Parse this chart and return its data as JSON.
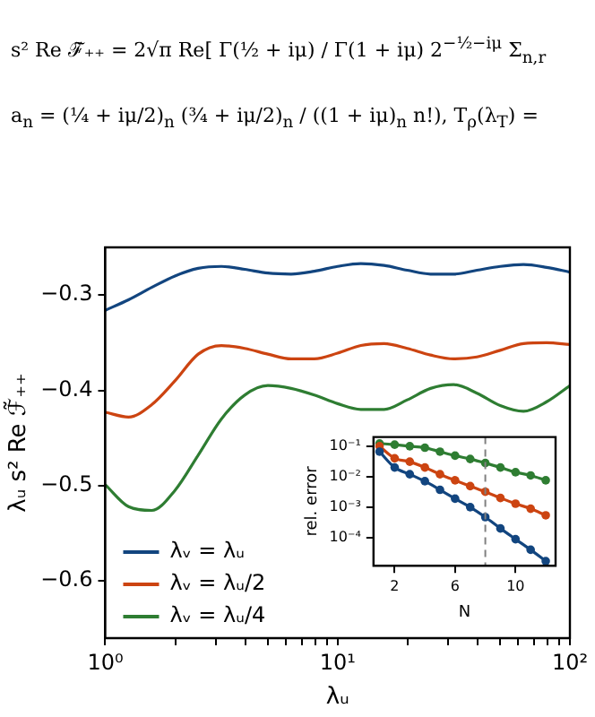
{
  "chart_data": [
    {
      "type": "line",
      "annotations": [
        "s² Re ℱ̃₊₊ = 2√π Re[ Γ(½ + iμ) / Γ(1 + iμ) 2$^{−½−iμ}$ Σ$_{n,r}$",
        "a$_{n}$ = (¼ + iμ/2)$_{n}$ (¾ + iμ/2)$_{n}$ / ((1 + iμ)$_{n}$ n!),   T$_{ρ}$(λ$_{T}$) ="
      ],
      "xlabel": "λᵤ",
      "ylabel": "λᵤ s² Re ℱ̃₊₊",
      "x": [
        1,
        1.259,
        1.585,
        1.995,
        2.512,
        3.162,
        3.981,
        5.012,
        6.31,
        7.943,
        10,
        12.59,
        15.85,
        19.95,
        25.12,
        31.62,
        39.81,
        50.12,
        63.1,
        79.43,
        100
      ],
      "series": [
        {
          "name": "λᵥ = λᵤ",
          "color": "#12457f",
          "values": [
            -0.316,
            -0.305,
            -0.292,
            -0.28,
            -0.272,
            -0.27,
            -0.273,
            -0.277,
            -0.278,
            -0.275,
            -0.27,
            -0.267,
            -0.269,
            -0.274,
            -0.278,
            -0.278,
            -0.274,
            -0.27,
            -0.268,
            -0.271,
            -0.276
          ]
        },
        {
          "name": "λᵥ = λᵤ/2",
          "color": "#cc4411",
          "values": [
            -0.423,
            -0.428,
            -0.415,
            -0.39,
            -0.362,
            -0.353,
            -0.356,
            -0.362,
            -0.367,
            -0.367,
            -0.361,
            -0.353,
            -0.351,
            -0.356,
            -0.363,
            -0.367,
            -0.365,
            -0.358,
            -0.351,
            -0.35,
            -0.352
          ]
        },
        {
          "name": "λᵥ = λᵤ/4",
          "color": "#2e7d32",
          "values": [
            -0.499,
            -0.522,
            -0.526,
            -0.505,
            -0.468,
            -0.43,
            -0.405,
            -0.395,
            -0.398,
            -0.405,
            -0.414,
            -0.42,
            -0.42,
            -0.41,
            -0.398,
            -0.394,
            -0.403,
            -0.416,
            -0.422,
            -0.412,
            -0.395
          ]
        }
      ],
      "log": "x",
      "xlim": [
        1,
        100
      ],
      "ylim": [
        -0.66,
        -0.25
      ],
      "xticks": [
        {
          "value": 1,
          "label": "10⁰"
        },
        {
          "value": 2,
          "label": null
        },
        {
          "value": 3,
          "label": null
        },
        {
          "value": 4,
          "label": null
        },
        {
          "value": 5,
          "label": null
        },
        {
          "value": 6,
          "label": null
        },
        {
          "value": 7,
          "label": null
        },
        {
          "value": 8,
          "label": null
        },
        {
          "value": 9,
          "label": null
        },
        {
          "value": 10,
          "label": "10¹"
        },
        {
          "value": 20,
          "label": null
        },
        {
          "value": 30,
          "label": null
        },
        {
          "value": 40,
          "label": null
        },
        {
          "value": 50,
          "label": null
        },
        {
          "value": 60,
          "label": null
        },
        {
          "value": 70,
          "label": null
        },
        {
          "value": 80,
          "label": null
        },
        {
          "value": 90,
          "label": null
        },
        {
          "value": 100,
          "label": "10²"
        }
      ],
      "yticks": [
        {
          "value": -0.3,
          "label": "−0.3"
        },
        {
          "value": -0.4,
          "label": "−0.4"
        },
        {
          "value": -0.5,
          "label": "−0.5"
        },
        {
          "value": -0.6,
          "label": "−0.6"
        }
      ],
      "legend": "bottom left",
      "marker": "none",
      "line_style": "solid"
    },
    {
      "type": "line",
      "xlabel": "N",
      "ylabel": "rel. error",
      "x": [
        1,
        2,
        3,
        4,
        5,
        6,
        7,
        8,
        9,
        10,
        11,
        12
      ],
      "series": [
        {
          "color": "#12457f",
          "values": [
            0.066,
            0.02,
            0.012,
            0.0071,
            0.0037,
            0.0019,
            0.001,
            0.00047,
            0.0002,
            8.9e-05,
            4e-05,
            1.7e-05
          ]
        },
        {
          "color": "#cc4411",
          "values": [
            0.1,
            0.04,
            0.031,
            0.02,
            0.012,
            0.0076,
            0.0049,
            0.0032,
            0.002,
            0.0013,
            0.00089,
            0.00054
          ]
        },
        {
          "color": "#2e7d32",
          "values": [
            0.123,
            0.112,
            0.1,
            0.089,
            0.066,
            0.049,
            0.038,
            0.028,
            0.02,
            0.014,
            0.011,
            0.0076
          ]
        }
      ],
      "log": "y",
      "xlim": [
        0.6,
        12.65
      ],
      "ylim": [
        1.2e-05,
        0.2
      ],
      "xticks": [
        2,
        6,
        10
      ],
      "yticks": [
        {
          "value": 0.1,
          "label": "10⁻¹"
        },
        {
          "value": 0.01,
          "label": "10⁻²"
        },
        {
          "value": 0.001,
          "label": "10⁻³"
        },
        {
          "value": 0.0001,
          "label": "10⁻⁴"
        }
      ],
      "ref_lines": [
        {
          "axis": "x",
          "value": 8,
          "color": "#808080",
          "line_style": "dashed"
        }
      ],
      "marker": "circle",
      "line_style": "solid"
    }
  ]
}
